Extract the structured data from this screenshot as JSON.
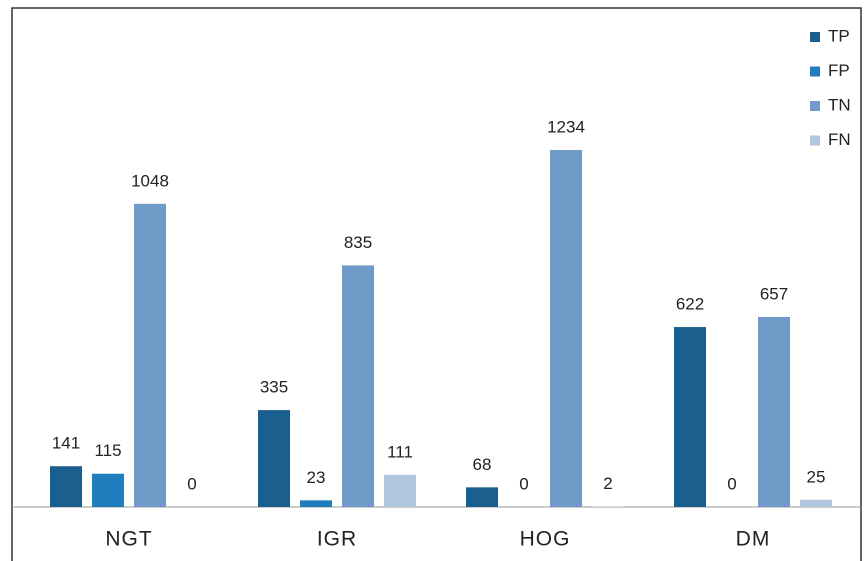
{
  "chart_data": {
    "type": "bar",
    "categories": [
      "NGT",
      "IGR",
      "HOG",
      "DM"
    ],
    "series": [
      {
        "name": "TP",
        "color": "#1a5f8e",
        "values": [
          141,
          335,
          68,
          622
        ]
      },
      {
        "name": "FP",
        "color": "#1f7cbd",
        "values": [
          115,
          23,
          0,
          0
        ]
      },
      {
        "name": "TN",
        "color": "#6f9bc9",
        "values": [
          1048,
          835,
          1234,
          657
        ]
      },
      {
        "name": "FN",
        "color": "#b2c6df",
        "values": [
          0,
          111,
          2,
          25
        ]
      }
    ],
    "legend": "top-right"
  }
}
